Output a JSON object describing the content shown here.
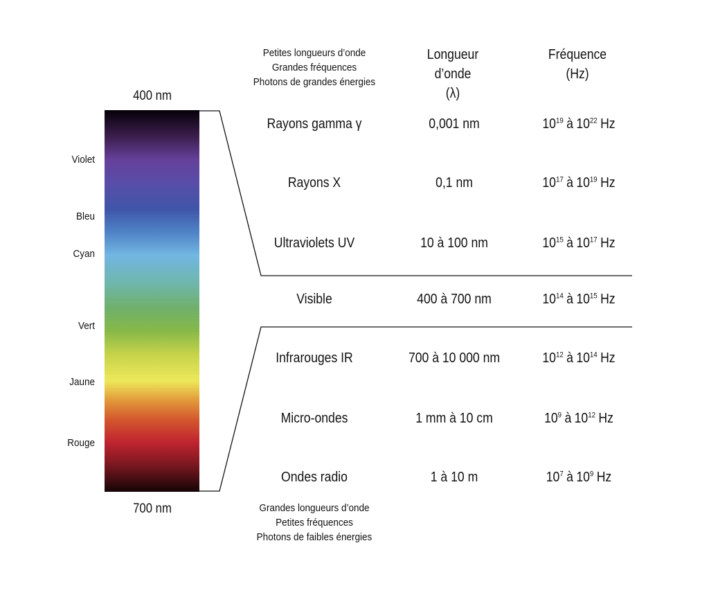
{
  "spectrum": {
    "top_label": "400 nm",
    "bottom_label": "700 nm",
    "colors": [
      {
        "label": "Violet"
      },
      {
        "label": "Bleu"
      },
      {
        "label": "Cyan"
      },
      {
        "label": "Vert"
      },
      {
        "label": "Jaune"
      },
      {
        "label": "Rouge"
      }
    ]
  },
  "top_note": {
    "line1": "Petites longueurs d’onde",
    "line2": "Grandes fréquences",
    "line3": "Photons de grandes énergies"
  },
  "bottom_note": {
    "line1": "Grandes longueurs d’onde",
    "line2": "Petites fréquences",
    "line3": "Photons de faibles énergies"
  },
  "headers": {
    "wavelength_line1": "Longueur",
    "wavelength_line2": "d’onde",
    "wavelength_line3": "(λ)",
    "frequency_line1": "Fréquence",
    "frequency_line2": "(Hz)"
  },
  "rows": [
    {
      "name": "Rayons gamma γ",
      "wavelength": "0,001 nm",
      "f_from": "19",
      "f_to": "22",
      "base": "10",
      "sep": "à",
      "unit": "Hz"
    },
    {
      "name": "Rayons X",
      "wavelength": "0,1 nm",
      "f_from": "17",
      "f_to": "19",
      "base": "10",
      "sep": "à",
      "unit": "Hz"
    },
    {
      "name": "Ultraviolets UV",
      "wavelength": "10 à 100 nm",
      "f_from": "15",
      "f_to": "17",
      "base": "10",
      "sep": "à",
      "unit": "Hz"
    },
    {
      "name": "Visible",
      "wavelength": "400 à 700 nm",
      "f_from": "14",
      "f_to": "15",
      "base": "10",
      "sep": "à",
      "unit": "Hz"
    },
    {
      "name": "Infrarouges IR",
      "wavelength": "700 à 10 000 nm",
      "f_from": "12",
      "f_to": "14",
      "base": "10",
      "sep": "à",
      "unit": "Hz"
    },
    {
      "name": "Micro-ondes",
      "wavelength": "1 mm à 10 cm",
      "f_from": "9",
      "f_to": "12",
      "base": "10",
      "sep": "à",
      "unit": "Hz"
    },
    {
      "name": "Ondes radio",
      "wavelength": "1 à 10 m",
      "f_from": "7",
      "f_to": "9",
      "base": "10",
      "sep": "à",
      "unit": "Hz"
    }
  ]
}
